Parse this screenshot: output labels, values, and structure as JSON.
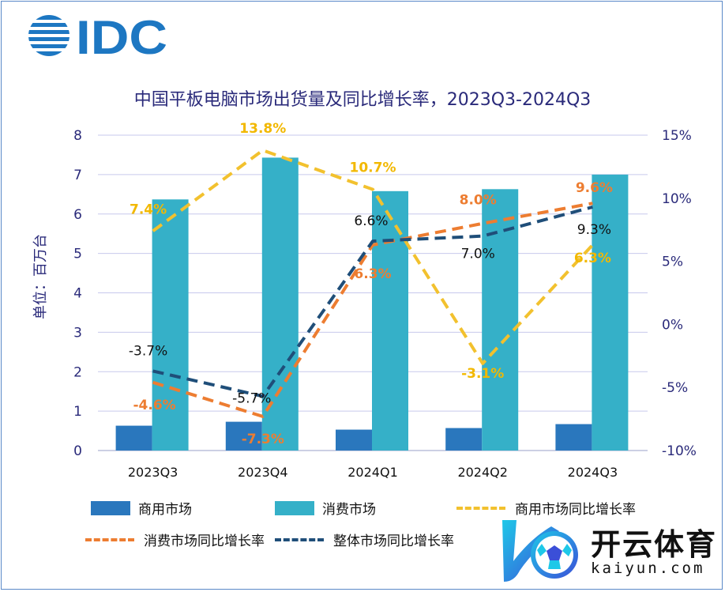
{
  "logo": {
    "text": "IDC"
  },
  "chart_data": {
    "type": "bar",
    "title": "中国平板电脑市场出货量及同比增长率，2023Q3-2024Q3",
    "ylabel": "单位：百万台",
    "categories": [
      "2023Q3",
      "2023Q4",
      "2024Q1",
      "2024Q2",
      "2024Q3"
    ],
    "ylim": [
      0,
      8
    ],
    "y_ticks": [
      "0",
      "1",
      "2",
      "3",
      "4",
      "5",
      "6",
      "7",
      "8"
    ],
    "y2lim": [
      -10,
      15
    ],
    "y2_ticks": [
      "-10%",
      "-5%",
      "0%",
      "5%",
      "10%",
      "15%"
    ],
    "grid": true,
    "legend_position": "bottom",
    "bar_series": [
      {
        "name": "商用市场",
        "color": "#2a77bd",
        "values": [
          0.63,
          0.73,
          0.53,
          0.57,
          0.67
        ]
      },
      {
        "name": "消费市场",
        "color": "#35b0c8",
        "values": [
          6.37,
          7.43,
          6.58,
          6.63,
          7.0
        ]
      }
    ],
    "line_series": [
      {
        "name": "商用市场同比增长率",
        "color": "#f2c12e",
        "values": [
          7.4,
          13.8,
          10.7,
          -3.1,
          6.3
        ],
        "labels": [
          "7.4%",
          "13.8%",
          "10.7%",
          "-3.1%",
          "6.3%"
        ]
      },
      {
        "name": "消费市场同比增长率",
        "color": "#ed7d31",
        "values": [
          -4.6,
          -7.3,
          6.3,
          8.0,
          9.6
        ],
        "labels": [
          "-4.6%",
          "-7.3%",
          "6.3%",
          "8.0%",
          "9.6%"
        ]
      },
      {
        "name": "整体市场同比增长率",
        "color": "#1f4e79",
        "values": [
          -3.7,
          -5.7,
          6.6,
          7.0,
          9.3
        ],
        "labels": [
          "-3.7%",
          "-5.7%",
          "6.6%",
          "7.0%",
          "9.3%"
        ]
      }
    ]
  },
  "watermark": {
    "cn": "开云体育",
    "en": "kaiyun.com"
  }
}
